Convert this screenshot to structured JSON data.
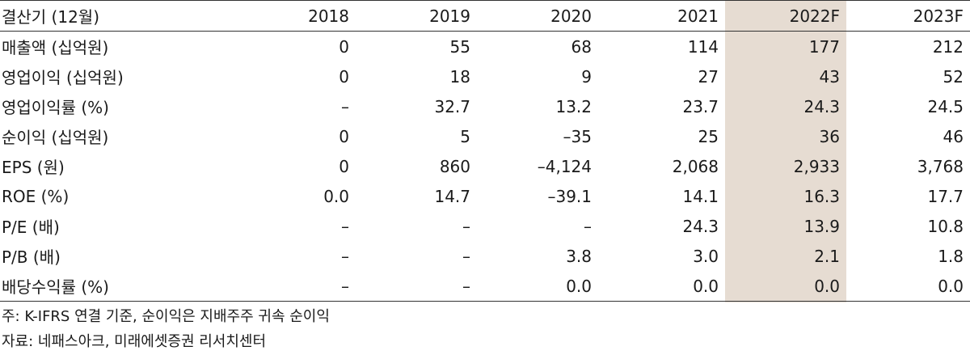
{
  "table": {
    "header": [
      "결산기 (12월)",
      "2018",
      "2019",
      "2020",
      "2021",
      "2022F",
      "2023F"
    ],
    "rows": [
      [
        "매출액 (십억원)",
        "0",
        "55",
        "68",
        "114",
        "177",
        "212"
      ],
      [
        "영업이익 (십억원)",
        "0",
        "18",
        "9",
        "27",
        "43",
        "52"
      ],
      [
        "영업이익률 (%)",
        "–",
        "32.7",
        "13.2",
        "23.7",
        "24.3",
        "24.5"
      ],
      [
        "순이익 (십억원)",
        "0",
        "5",
        "–35",
        "25",
        "36",
        "46"
      ],
      [
        "EPS (원)",
        "0",
        "860",
        "–4,124",
        "2,068",
        "2,933",
        "3,768"
      ],
      [
        "ROE (%)",
        "0.0",
        "14.7",
        "–39.1",
        "14.1",
        "16.3",
        "17.7"
      ],
      [
        "P/E (배)",
        "–",
        "–",
        "–",
        "24.3",
        "13.9",
        "10.8"
      ],
      [
        "P/B (배)",
        "–",
        "–",
        "3.8",
        "3.0",
        "2.1",
        "1.8"
      ],
      [
        "배당수익률 (%)",
        "–",
        "–",
        "0.0",
        "0.0",
        "0.0",
        "0.0"
      ]
    ],
    "highlight_color": "#e6dcd2"
  },
  "notes": {
    "note": "주: K-IFRS 연결 기준, 순이익은 지배주주 귀속 순이익",
    "source": "자료: 네패스아크, 미래에셋증권 리서치센터"
  }
}
